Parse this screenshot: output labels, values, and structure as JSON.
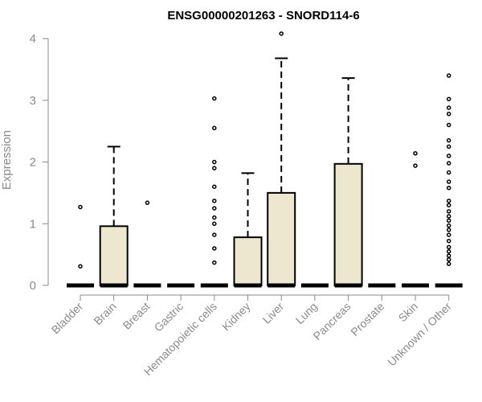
{
  "chart_data": {
    "type": "box",
    "title": "ENSG00000201263 - SNORD114-6",
    "xlabel": "",
    "ylabel": "Expression",
    "ylim": [
      0,
      4
    ],
    "yticks": [
      0,
      1,
      2,
      3,
      4
    ],
    "categories": [
      "Bladder",
      "Brain",
      "Breast",
      "Gastric",
      "Hematopoietic cells",
      "Kidney",
      "Liver",
      "Lung",
      "Pancreas",
      "Prostate",
      "Skin",
      "Unknown / Other"
    ],
    "boxes": [
      {
        "category": "Bladder",
        "q1": 0,
        "median": 0,
        "q3": 0,
        "whisker_high": 0,
        "outliers": [
          0.31,
          1.27
        ]
      },
      {
        "category": "Brain",
        "q1": 0,
        "median": 0,
        "q3": 0.96,
        "whisker_high": 2.25,
        "outliers": []
      },
      {
        "category": "Breast",
        "q1": 0,
        "median": 0,
        "q3": 0,
        "whisker_high": 0,
        "outliers": [
          1.34
        ]
      },
      {
        "category": "Gastric",
        "q1": 0,
        "median": 0,
        "q3": 0,
        "whisker_high": 0,
        "outliers": []
      },
      {
        "category": "Hematopoietic cells",
        "q1": 0,
        "median": 0,
        "q3": 0,
        "whisker_high": 0,
        "outliers": [
          0.37,
          0.6,
          0.82,
          1.0,
          1.1,
          1.25,
          1.37,
          1.6,
          1.9,
          2.0,
          2.55,
          3.03
        ]
      },
      {
        "category": "Kidney",
        "q1": 0,
        "median": 0,
        "q3": 0.78,
        "whisker_high": 1.82,
        "outliers": []
      },
      {
        "category": "Liver",
        "q1": 0,
        "median": 0,
        "q3": 1.5,
        "whisker_high": 3.68,
        "outliers": [
          4.08
        ]
      },
      {
        "category": "Lung",
        "q1": 0,
        "median": 0,
        "q3": 0,
        "whisker_high": 0,
        "outliers": []
      },
      {
        "category": "Pancreas",
        "q1": 0,
        "median": 0,
        "q3": 1.97,
        "whisker_high": 3.36,
        "outliers": []
      },
      {
        "category": "Prostate",
        "q1": 0,
        "median": 0,
        "q3": 0,
        "whisker_high": 0,
        "outliers": []
      },
      {
        "category": "Skin",
        "q1": 0,
        "median": 0,
        "q3": 0,
        "whisker_high": 0,
        "outliers": [
          1.94,
          2.14
        ]
      },
      {
        "category": "Unknown / Other",
        "q1": 0,
        "median": 0,
        "q3": 0,
        "whisker_high": 0,
        "outliers": [
          0.35,
          0.42,
          0.48,
          0.55,
          0.62,
          0.72,
          0.82,
          0.9,
          0.97,
          1.05,
          1.12,
          1.2,
          1.3,
          1.37,
          1.58,
          1.68,
          1.83,
          1.98,
          2.1,
          2.25,
          2.35,
          2.6,
          2.78,
          2.88,
          3.02,
          3.4
        ]
      }
    ],
    "colors": {
      "box_fill": "#ede7cf",
      "box_stroke": "#000000",
      "axis": "#8a8a8a"
    },
    "grid": false,
    "legend": "none"
  }
}
